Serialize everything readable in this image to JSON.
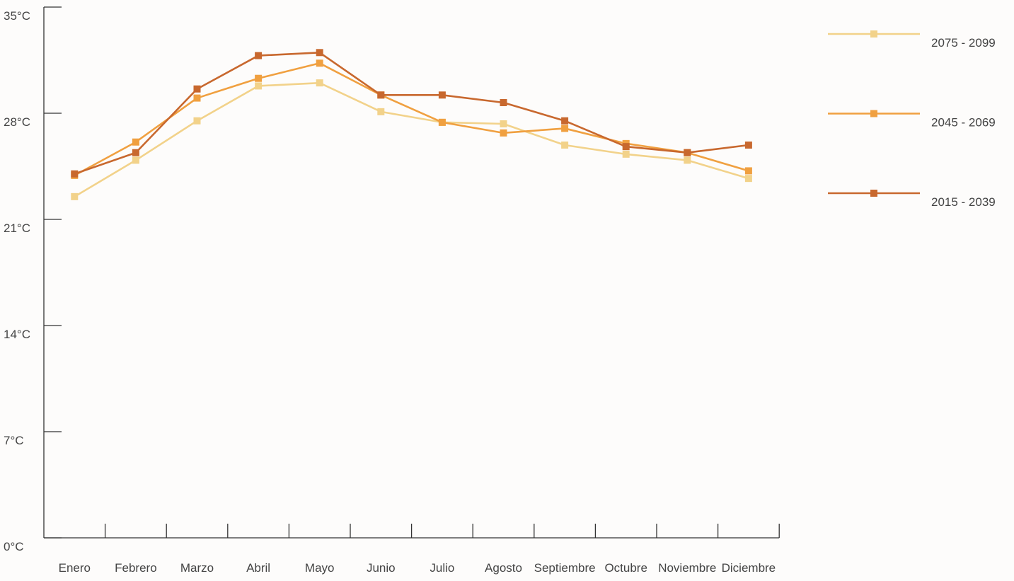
{
  "chart_data": {
    "type": "line",
    "title": "",
    "xlabel": "",
    "ylabel": "",
    "categories": [
      "Enero",
      "Febrero",
      "Marzo",
      "Abril",
      "Mayo",
      "Junio",
      "Julio",
      "Agosto",
      "Septiembre",
      "Octubre",
      "Noviembre",
      "Diciembre"
    ],
    "y_ticks": [
      "0°C",
      "7°C",
      "14°C",
      "21°C",
      "28°C",
      "35°C"
    ],
    "y_tick_values": [
      0,
      7,
      14,
      21,
      28,
      35
    ],
    "ylim": [
      0,
      35
    ],
    "grid": false,
    "legend_position": "right",
    "series": [
      {
        "name": "2075 - 2099",
        "color": "#f2d28a",
        "values": [
          22.5,
          24.9,
          27.5,
          29.8,
          30.0,
          28.1,
          27.4,
          27.3,
          25.9,
          25.3,
          24.9,
          23.7
        ]
      },
      {
        "name": "2045 - 2069",
        "color": "#f0a040",
        "values": [
          23.9,
          26.1,
          29.0,
          30.3,
          31.3,
          29.2,
          27.4,
          26.7,
          27.0,
          26.0,
          25.4,
          24.2
        ]
      },
      {
        "name": "2015 - 2039",
        "color": "#c8682e",
        "values": [
          24.0,
          25.4,
          29.6,
          31.8,
          32.0,
          29.2,
          29.2,
          28.7,
          27.5,
          25.8,
          25.4,
          25.9
        ]
      }
    ]
  }
}
